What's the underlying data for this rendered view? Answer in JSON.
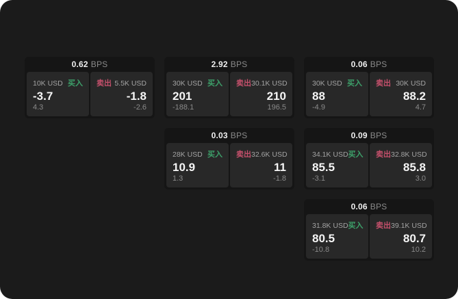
{
  "labels": {
    "bps_unit": "BPS",
    "buy": "买入",
    "sell": "卖出"
  },
  "colors": {
    "page_bg": "#1b1b1b",
    "card_bg": "#151515",
    "panel_bg": "#282828",
    "buy": "#3da06a",
    "sell": "#c4506b"
  },
  "cards": [
    {
      "bps": "0.62",
      "buy": {
        "notional": "10K USD",
        "price": "-3.7",
        "sub": "4.3"
      },
      "sell": {
        "notional": "5.5K USD",
        "price": "-1.8",
        "sub": "-2.6"
      }
    },
    {
      "bps": "2.92",
      "buy": {
        "notional": "30K USD",
        "price": "201",
        "sub": "-188.1"
      },
      "sell": {
        "notional": "30.1K USD",
        "price": "210",
        "sub": "196.5"
      }
    },
    {
      "bps": "0.06",
      "buy": {
        "notional": "30K USD",
        "price": "88",
        "sub": "-4.9"
      },
      "sell": {
        "notional": "30K USD",
        "price": "88.2",
        "sub": "4.7"
      }
    },
    {
      "bps": "0.03",
      "buy": {
        "notional": "28K USD",
        "price": "10.9",
        "sub": "1.3"
      },
      "sell": {
        "notional": "32.6K USD",
        "price": "11",
        "sub": "-1.8"
      }
    },
    {
      "bps": "0.09",
      "buy": {
        "notional": "34.1K USD",
        "price": "85.5",
        "sub": "-3.1"
      },
      "sell": {
        "notional": "32.8K USD",
        "price": "85.8",
        "sub": "3.0"
      }
    },
    {
      "bps": "0.06",
      "buy": {
        "notional": "31.8K USD",
        "price": "80.5",
        "sub": "-10.8"
      },
      "sell": {
        "notional": "39.1K USD",
        "price": "80.7",
        "sub": "10.2"
      }
    }
  ]
}
